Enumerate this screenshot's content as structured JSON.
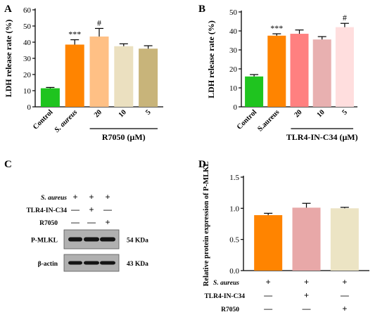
{
  "panels": {
    "A": {
      "letter": "A"
    },
    "B": {
      "letter": "B"
    },
    "C": {
      "letter": "C"
    },
    "D": {
      "letter": "D"
    }
  },
  "chart_data": [
    {
      "id": "A",
      "type": "bar",
      "ylabel": "LDH release rate (%)",
      "ylim": [
        0,
        60
      ],
      "yticks": [
        0,
        10,
        20,
        30,
        40,
        50,
        60
      ],
      "categories": [
        "Control",
        "S. aureus",
        "20",
        "10",
        "5"
      ],
      "category_italic": [
        false,
        true,
        false,
        false,
        false
      ],
      "values": [
        11.5,
        38.5,
        43.5,
        37.5,
        36
      ],
      "errors": [
        0.5,
        3,
        5,
        1.5,
        1.8
      ],
      "colors": [
        "#1fc41f",
        "#ff8400",
        "#ffc085",
        "#ebe0c0",
        "#c8b47a"
      ],
      "annotations": [
        "",
        "***",
        "#",
        "",
        ""
      ],
      "group_label": "R7050 (μM)",
      "group_span": [
        2,
        4
      ]
    },
    {
      "id": "B",
      "type": "bar",
      "ylabel": "LDH release rate (%)",
      "ylim": [
        0,
        50
      ],
      "yticks": [
        0,
        10,
        20,
        30,
        40,
        50
      ],
      "categories": [
        "Control",
        "S.aureus",
        "20",
        "10",
        "5"
      ],
      "category_italic": [
        false,
        false,
        false,
        false,
        false
      ],
      "values": [
        16,
        37.5,
        38.5,
        35.5,
        42
      ],
      "errors": [
        1,
        1,
        2,
        1.5,
        2
      ],
      "colors": [
        "#1fc41f",
        "#ff8400",
        "#ff8080",
        "#e8b0b0",
        "#ffdede"
      ],
      "annotations": [
        "",
        "***",
        "",
        "",
        "#"
      ],
      "group_label": "TLR4-IN-C34 (μM)",
      "group_span": [
        2,
        4
      ]
    },
    {
      "id": "D",
      "type": "bar",
      "ylabel": "Relative protein expression of P-MLKL",
      "ylim": [
        0,
        1.5
      ],
      "yticks": [
        0.0,
        0.5,
        1.0,
        1.5
      ],
      "ytick_labels": [
        "0.0",
        "0.5",
        "1.0",
        "1.5"
      ],
      "categories": [
        "",
        "",
        ""
      ],
      "values": [
        0.89,
        1.01,
        1.0
      ],
      "errors": [
        0.03,
        0.07,
        0.015
      ],
      "colors": [
        "#ff8400",
        "#e8a8a8",
        "#ece4c4"
      ],
      "conditions": [
        {
          "label": "S. aureus",
          "italic": true,
          "signs": [
            "+",
            "+",
            "+"
          ]
        },
        {
          "label": "TLR4-IN-C34",
          "italic": false,
          "signs": [
            "—",
            "+",
            "—"
          ]
        },
        {
          "label": "R7050",
          "italic": false,
          "signs": [
            "—",
            "—",
            "+"
          ]
        }
      ]
    }
  ],
  "western_blot": {
    "conditions": [
      {
        "label": "S. aureus",
        "italic": true,
        "signs": [
          "+",
          "+",
          "+"
        ]
      },
      {
        "label": "TLR4-IN-C34",
        "italic": false,
        "signs": [
          "—",
          "+",
          "—"
        ]
      },
      {
        "label": "R7050",
        "italic": false,
        "signs": [
          "—",
          "—",
          "+"
        ]
      }
    ],
    "bands": [
      {
        "label": "P-MLKL",
        "size": "54 KDa"
      },
      {
        "label": "β-actin",
        "size": "43 KDa"
      }
    ]
  }
}
